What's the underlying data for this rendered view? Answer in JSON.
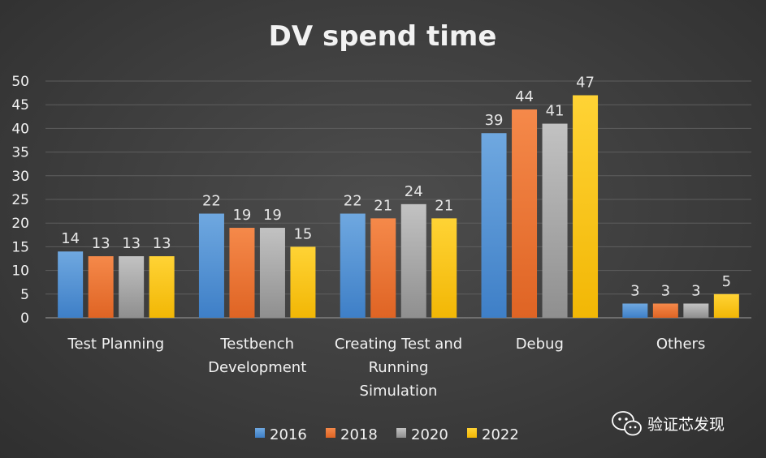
{
  "chart_data": {
    "type": "bar",
    "title": "DV spend time",
    "xlabel": "",
    "ylabel": "",
    "categories": [
      [
        "Test Planning"
      ],
      [
        "Testbench",
        "Development"
      ],
      [
        "Creating Test and",
        "Running",
        "Simulation"
      ],
      [
        "Debug"
      ],
      [
        "Others"
      ]
    ],
    "series": [
      {
        "name": "2016",
        "values": [
          14,
          22,
          22,
          39,
          3
        ]
      },
      {
        "name": "2018",
        "values": [
          13,
          19,
          21,
          44,
          3
        ]
      },
      {
        "name": "2020",
        "values": [
          13,
          19,
          24,
          41,
          3
        ]
      },
      {
        "name": "2022",
        "values": [
          13,
          15,
          21,
          47,
          5
        ]
      }
    ],
    "ylim": [
      0,
      50
    ],
    "yticks": [
      0,
      5,
      10,
      15,
      20,
      25,
      30,
      35,
      40,
      45,
      50
    ],
    "grid": true,
    "legend_position": "bottom",
    "data_labels": true
  },
  "colors": {
    "series": {
      "2016": [
        "#6fa8e0",
        "#3e7fc7"
      ],
      "2018": [
        "#f5894a",
        "#df6424"
      ],
      "2020": [
        "#c2c2c2",
        "#8f8f8f"
      ],
      "2022": [
        "#ffd335",
        "#f2b705"
      ]
    },
    "gridline": "#5e5e5e",
    "axis": "#8a8a8a"
  },
  "watermark": {
    "text": "验证芯发现",
    "icon": "wechat-icon"
  }
}
